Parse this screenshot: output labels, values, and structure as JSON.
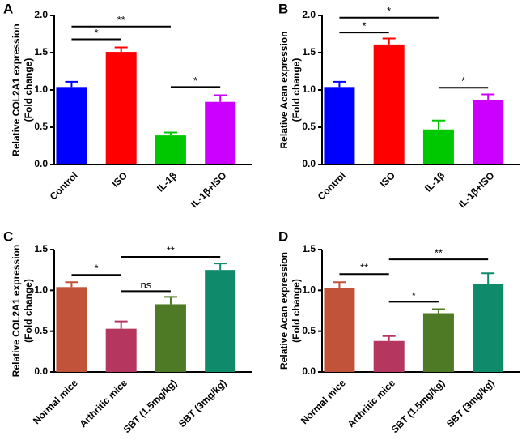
{
  "chart_data": [
    {
      "type": "bar",
      "panel_label": "A",
      "ylabel": [
        "Relative COL2A1 expression",
        "(Fold change)"
      ],
      "categories": [
        "Control",
        "ISO",
        "IL-1β",
        "IL-1β+ISO"
      ],
      "values": [
        1.04,
        1.51,
        0.39,
        0.84
      ],
      "errors": [
        0.07,
        0.06,
        0.04,
        0.09
      ],
      "colors": [
        "#0000ff",
        "#ff0000",
        "#00c800",
        "#cc00ff"
      ],
      "ylim": [
        0,
        2
      ],
      "yticks": [
        {
          "value": 0,
          "label": "0.0"
        },
        0.5,
        {
          "value": 1,
          "label": "1.0"
        },
        1.5,
        {
          "value": 2,
          "label": "2.0"
        }
      ],
      "annotations": [
        "*",
        "**",
        "*"
      ]
    },
    {
      "type": "bar",
      "panel_label": "B",
      "ylabel": [
        "Relative Acan expression",
        "(Fold change)"
      ],
      "categories": [
        "Control",
        "ISO",
        "IL-1β",
        "IL-1β+ISO"
      ],
      "values": [
        1.04,
        1.61,
        0.47,
        0.87
      ],
      "errors": [
        0.07,
        0.08,
        0.12,
        0.07
      ],
      "colors": [
        "#0000ff",
        "#ff0000",
        "#00c800",
        "#cc00ff"
      ],
      "ylim": [
        0,
        2
      ],
      "yticks": [
        {
          "value": 0,
          "label": "0.0"
        },
        0.5,
        {
          "value": 1,
          "label": "1.0"
        },
        1.5,
        {
          "value": 2,
          "label": "2.0"
        }
      ],
      "annotations": [
        "*",
        "*",
        "*"
      ]
    },
    {
      "type": "bar",
      "panel_label": "C",
      "ylabel": [
        "Relative COL2A1 expression",
        "(Fold change)"
      ],
      "categories": [
        "Normal mice",
        "Arthritic mice",
        "SBT (1.5mg/kg)",
        "SBT (3mg/kg)"
      ],
      "values": [
        1.04,
        0.53,
        0.83,
        1.25
      ],
      "errors": [
        0.06,
        0.09,
        0.09,
        0.08
      ],
      "colors": [
        "#c0533a",
        "#b5375f",
        "#4f7a25",
        "#0f8a6b"
      ],
      "ylim": [
        0,
        1.5
      ],
      "yticks": [
        {
          "value": 0,
          "label": "0.0"
        },
        0.5,
        {
          "value": 1,
          "label": "1.0"
        },
        1.5
      ],
      "annotations": [
        "*",
        "ns",
        "**"
      ]
    },
    {
      "type": "bar",
      "panel_label": "D",
      "ylabel": [
        "Relative Acan expression",
        "(Fold change)"
      ],
      "categories": [
        "Normal mice",
        "Arthritic mice",
        "SBT (1.5mg/kg)",
        "SBT (3mg/kg)"
      ],
      "values": [
        1.03,
        0.38,
        0.72,
        1.08
      ],
      "errors": [
        0.07,
        0.06,
        0.05,
        0.13
      ],
      "colors": [
        "#c0533a",
        "#b5375f",
        "#4f7a25",
        "#0f8a6b"
      ],
      "ylim": [
        0,
        1.5
      ],
      "yticks": [
        {
          "value": 0,
          "label": "0.0"
        },
        0.5,
        {
          "value": 1,
          "label": "1.0"
        },
        1.5
      ],
      "annotations": [
        "**",
        "*",
        "**"
      ]
    }
  ]
}
